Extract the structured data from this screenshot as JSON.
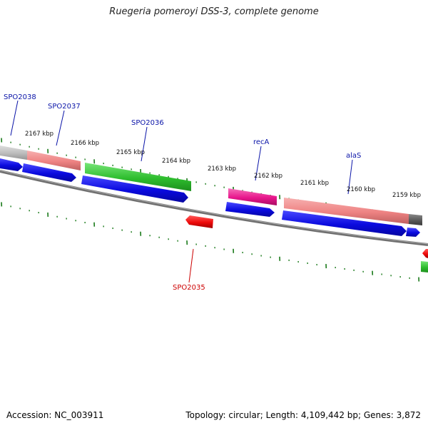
{
  "title": "Ruegeria pomeroyi DSS-3, complete genome",
  "footer": {
    "accession": "Accession: NC_003911",
    "topology": "Topology: circular; Length: 4,109,442 bp; Genes: 3,872"
  },
  "colors": {
    "label_blue": "#0a14a8",
    "label_red": "#cc0000",
    "cds_blue": "#0a0adf",
    "green": "#2ebd2e",
    "salmon": "#ee8383",
    "magenta": "#e8168c",
    "grey": "#bcbcbc",
    "darkgrey": "#5a5a5a",
    "red": "#ee0a0a",
    "backbone": "#7a7a7a",
    "tick": "#1a7a1a"
  },
  "kbp_labels": [
    {
      "text": "2167 kbp",
      "kbp": 2167
    },
    {
      "text": "2166 kbp",
      "kbp": 2166
    },
    {
      "text": "2165 kbp",
      "kbp": 2165
    },
    {
      "text": "2164 kbp",
      "kbp": 2164
    },
    {
      "text": "2163 kbp",
      "kbp": 2163
    },
    {
      "text": "2162 kbp",
      "kbp": 2162
    },
    {
      "text": "2161 kbp",
      "kbp": 2161
    },
    {
      "text": "2160 kbp",
      "kbp": 2160
    },
    {
      "text": "2159 kbp",
      "kbp": 2159
    }
  ],
  "gene_labels": [
    {
      "id": "spo2038",
      "text": "SPO2038",
      "color": "blue"
    },
    {
      "id": "spo2037",
      "text": "SPO2037",
      "color": "blue"
    },
    {
      "id": "spo2036",
      "text": "SPO2036",
      "color": "blue"
    },
    {
      "id": "reca",
      "text": "recA",
      "color": "blue"
    },
    {
      "id": "alas",
      "text": "alaS",
      "color": "blue"
    },
    {
      "id": "spo2035",
      "text": "SPO2035",
      "color": "red"
    }
  ]
}
